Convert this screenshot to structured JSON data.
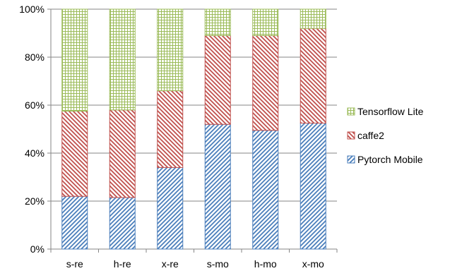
{
  "chart_data": {
    "type": "bar",
    "stacked": true,
    "percent": true,
    "categories": [
      "s-re",
      "h-re",
      "x-re",
      "s-mo",
      "h-mo",
      "x-mo"
    ],
    "series": [
      {
        "name": "Pytorch Mobile",
        "values": [
          22,
          21.5,
          34,
          52,
          49.5,
          52.5
        ],
        "color": "#4a7ebb",
        "pattern": "diagonal-stripes"
      },
      {
        "name": "caffe2",
        "values": [
          35.5,
          36.5,
          32,
          37,
          39.5,
          39.5
        ],
        "color": "#c0504d",
        "pattern": "diagonal-stripes-reverse"
      },
      {
        "name": "Tensorflow Lite",
        "values": [
          42.5,
          42,
          34,
          11,
          11,
          8
        ],
        "color": "#9bbb59",
        "pattern": "grid"
      }
    ],
    "y_ticks": [
      "0%",
      "20%",
      "40%",
      "60%",
      "80%",
      "100%"
    ],
    "ylim": [
      0,
      100
    ],
    "grid": true,
    "legend_position": "right",
    "title": "",
    "xlabel": "",
    "ylabel": ""
  }
}
